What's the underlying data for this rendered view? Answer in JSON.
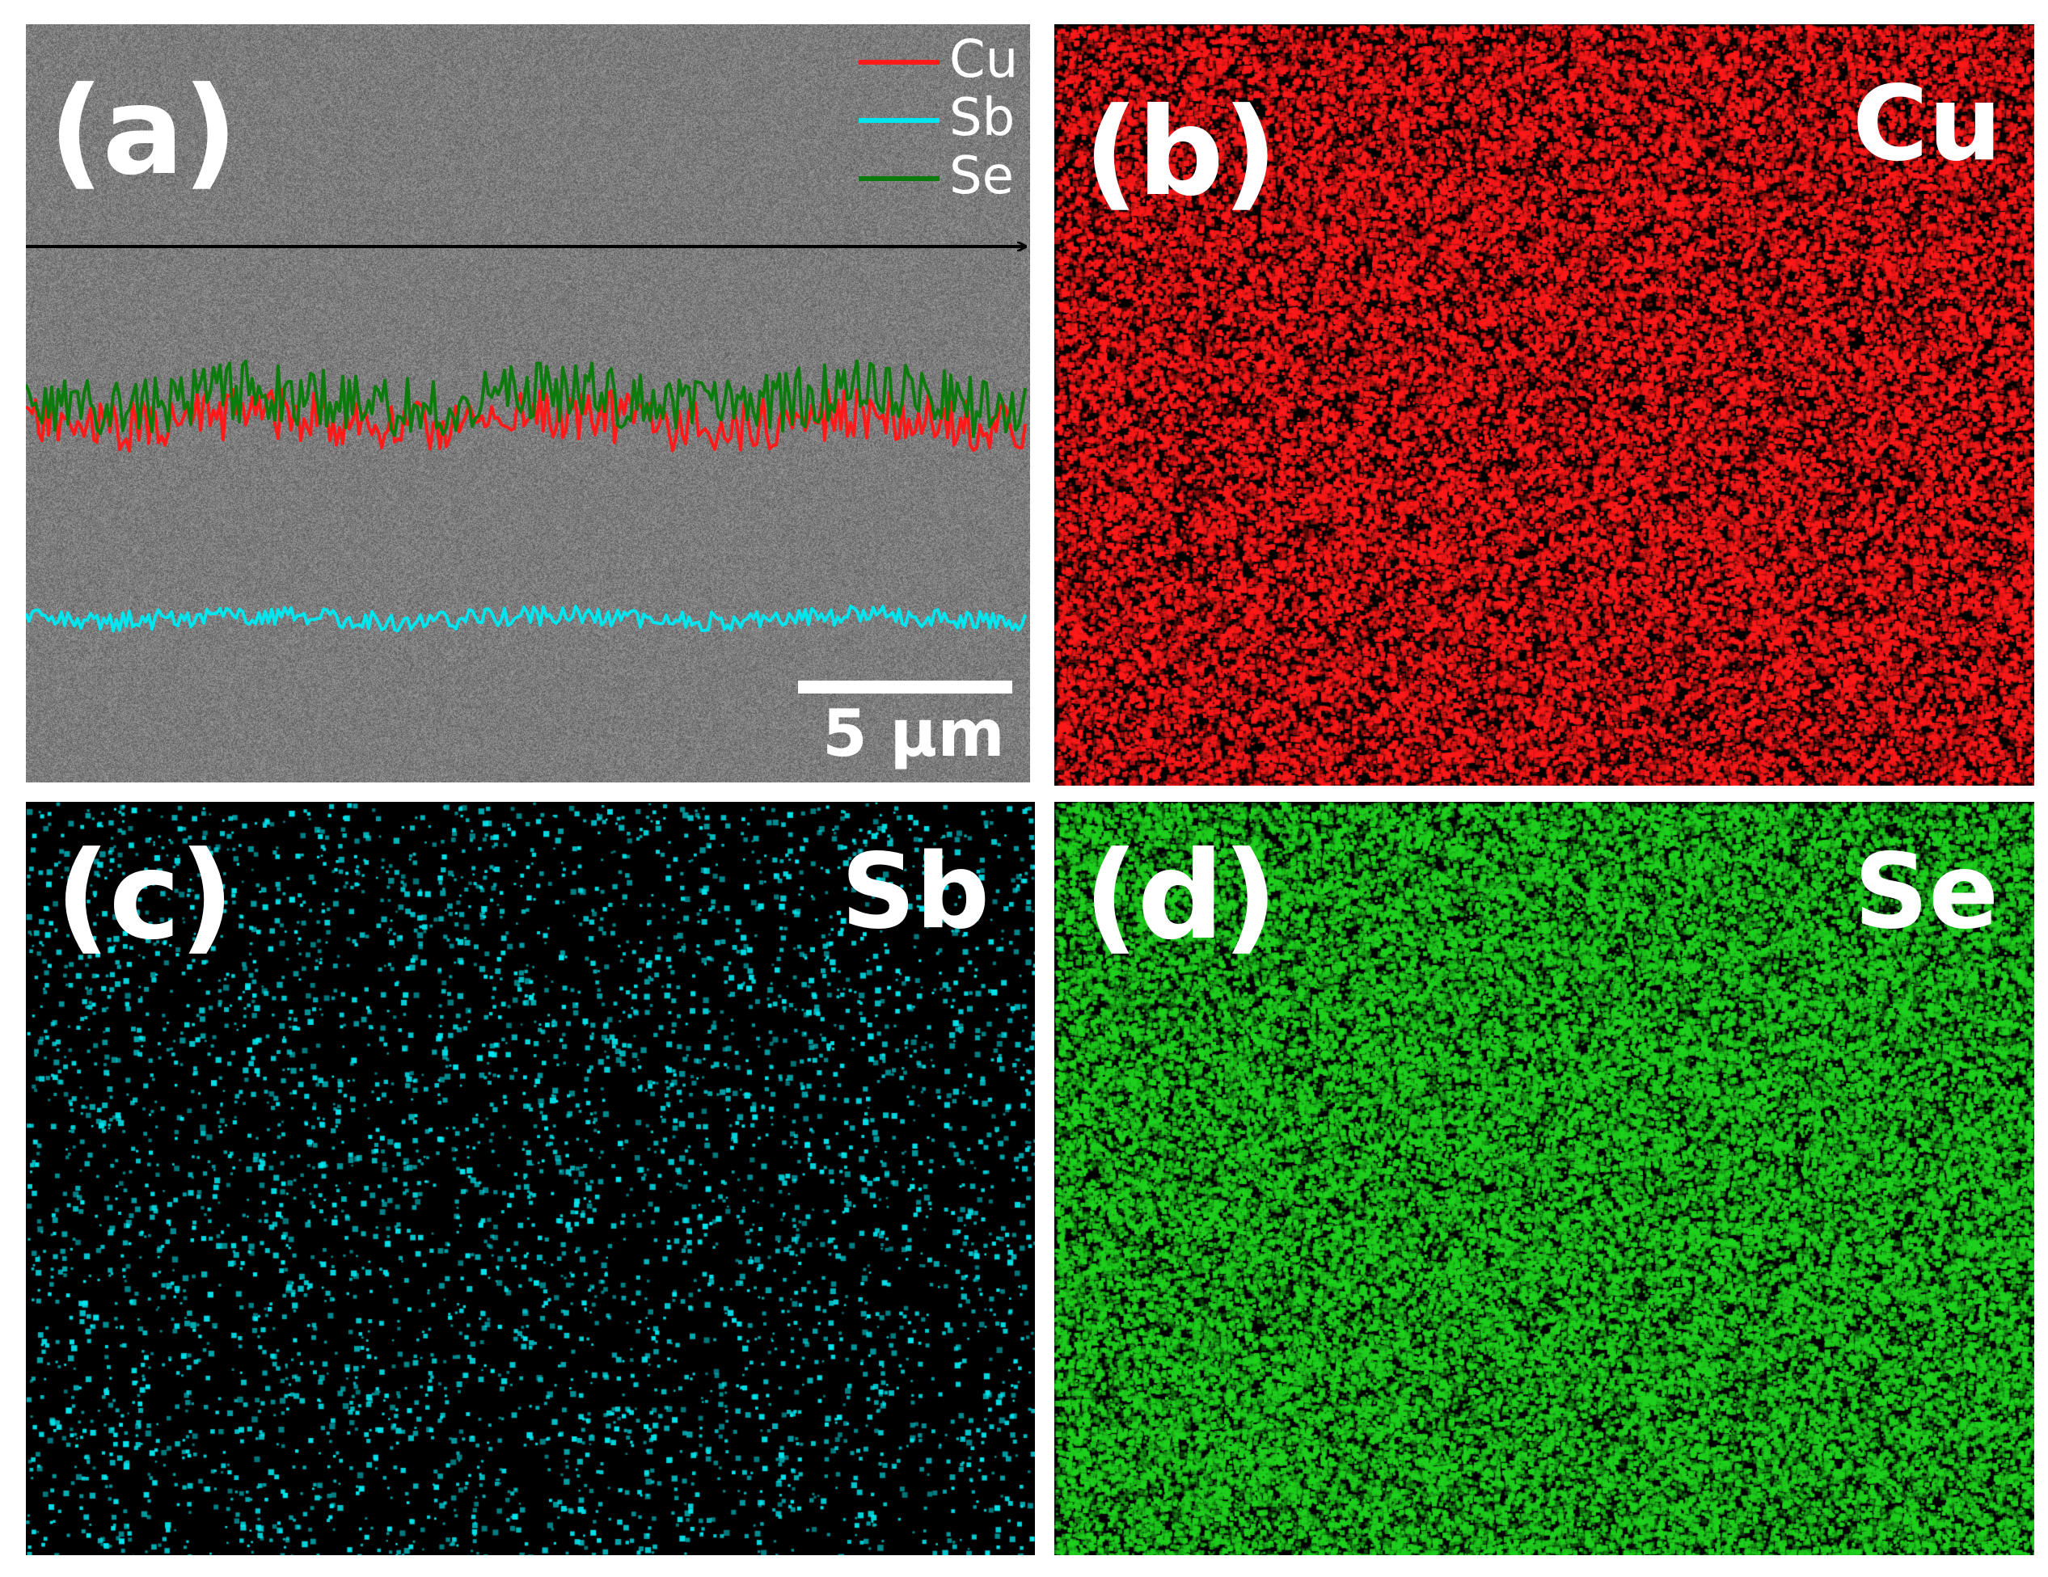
{
  "panels": {
    "a": {
      "label": "(a)",
      "legend": [
        {
          "name": "Cu",
          "color": "#ff1a1a"
        },
        {
          "name": "Sb",
          "color": "#00e5ee"
        },
        {
          "name": "Se",
          "color": "#0d7a0d"
        }
      ],
      "scale_bar": "5 μm"
    },
    "b": {
      "label": "(b)",
      "element": "Cu",
      "color": "#ff1a1a"
    },
    "c": {
      "label": "(c)",
      "element": "Sb",
      "color": "#00e5ee"
    },
    "d": {
      "label": "(d)",
      "element": "Se",
      "color": "#1fd11f"
    }
  }
}
